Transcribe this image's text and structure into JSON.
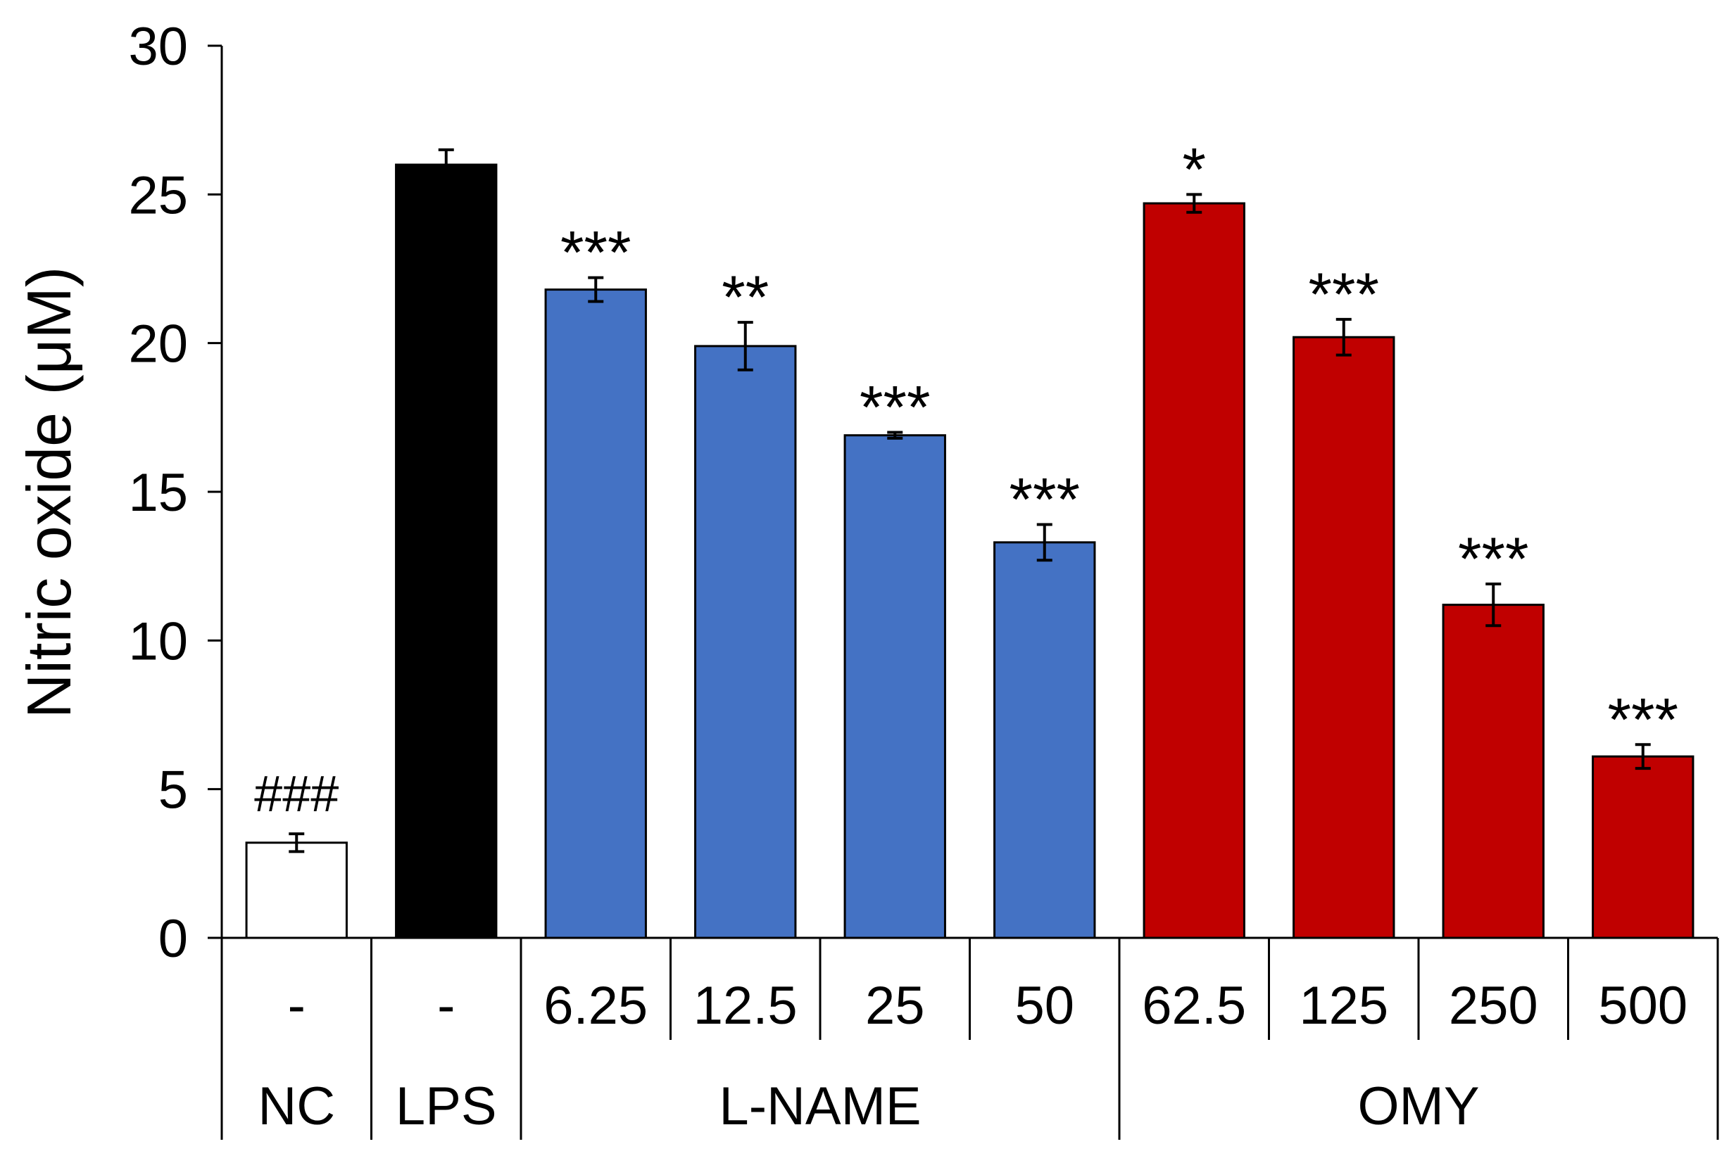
{
  "chart_data": {
    "type": "bar",
    "title": "",
    "xlabel": "",
    "ylabel": "Nitric oxide (μM)",
    "ylim": [
      0,
      30
    ],
    "yticks": [
      0,
      5,
      10,
      15,
      20,
      25,
      30
    ],
    "grid": false,
    "categories": [
      "-",
      "-",
      "6.25",
      "12.5",
      "25",
      "50",
      "62.5",
      "125",
      "250",
      "500"
    ],
    "groups": [
      {
        "label": "NC",
        "count": 1
      },
      {
        "label": "LPS",
        "count": 1
      },
      {
        "label": "L-NAME",
        "count": 4
      },
      {
        "label": "OMY",
        "count": 4
      }
    ],
    "values": [
      3.2,
      26.0,
      21.8,
      19.9,
      16.9,
      13.3,
      24.7,
      20.2,
      11.2,
      6.1
    ],
    "errors": [
      0.3,
      0.5,
      0.4,
      0.8,
      0.1,
      0.6,
      0.3,
      0.6,
      0.7,
      0.4
    ],
    "significance": [
      "###",
      "",
      "***",
      "**",
      "***",
      "***",
      "*",
      "***",
      "***",
      "***"
    ],
    "colors": [
      "#ffffff",
      "#000000",
      "#4472c4",
      "#4472c4",
      "#4472c4",
      "#4472c4",
      "#c00000",
      "#c00000",
      "#c00000",
      "#c00000"
    ]
  }
}
